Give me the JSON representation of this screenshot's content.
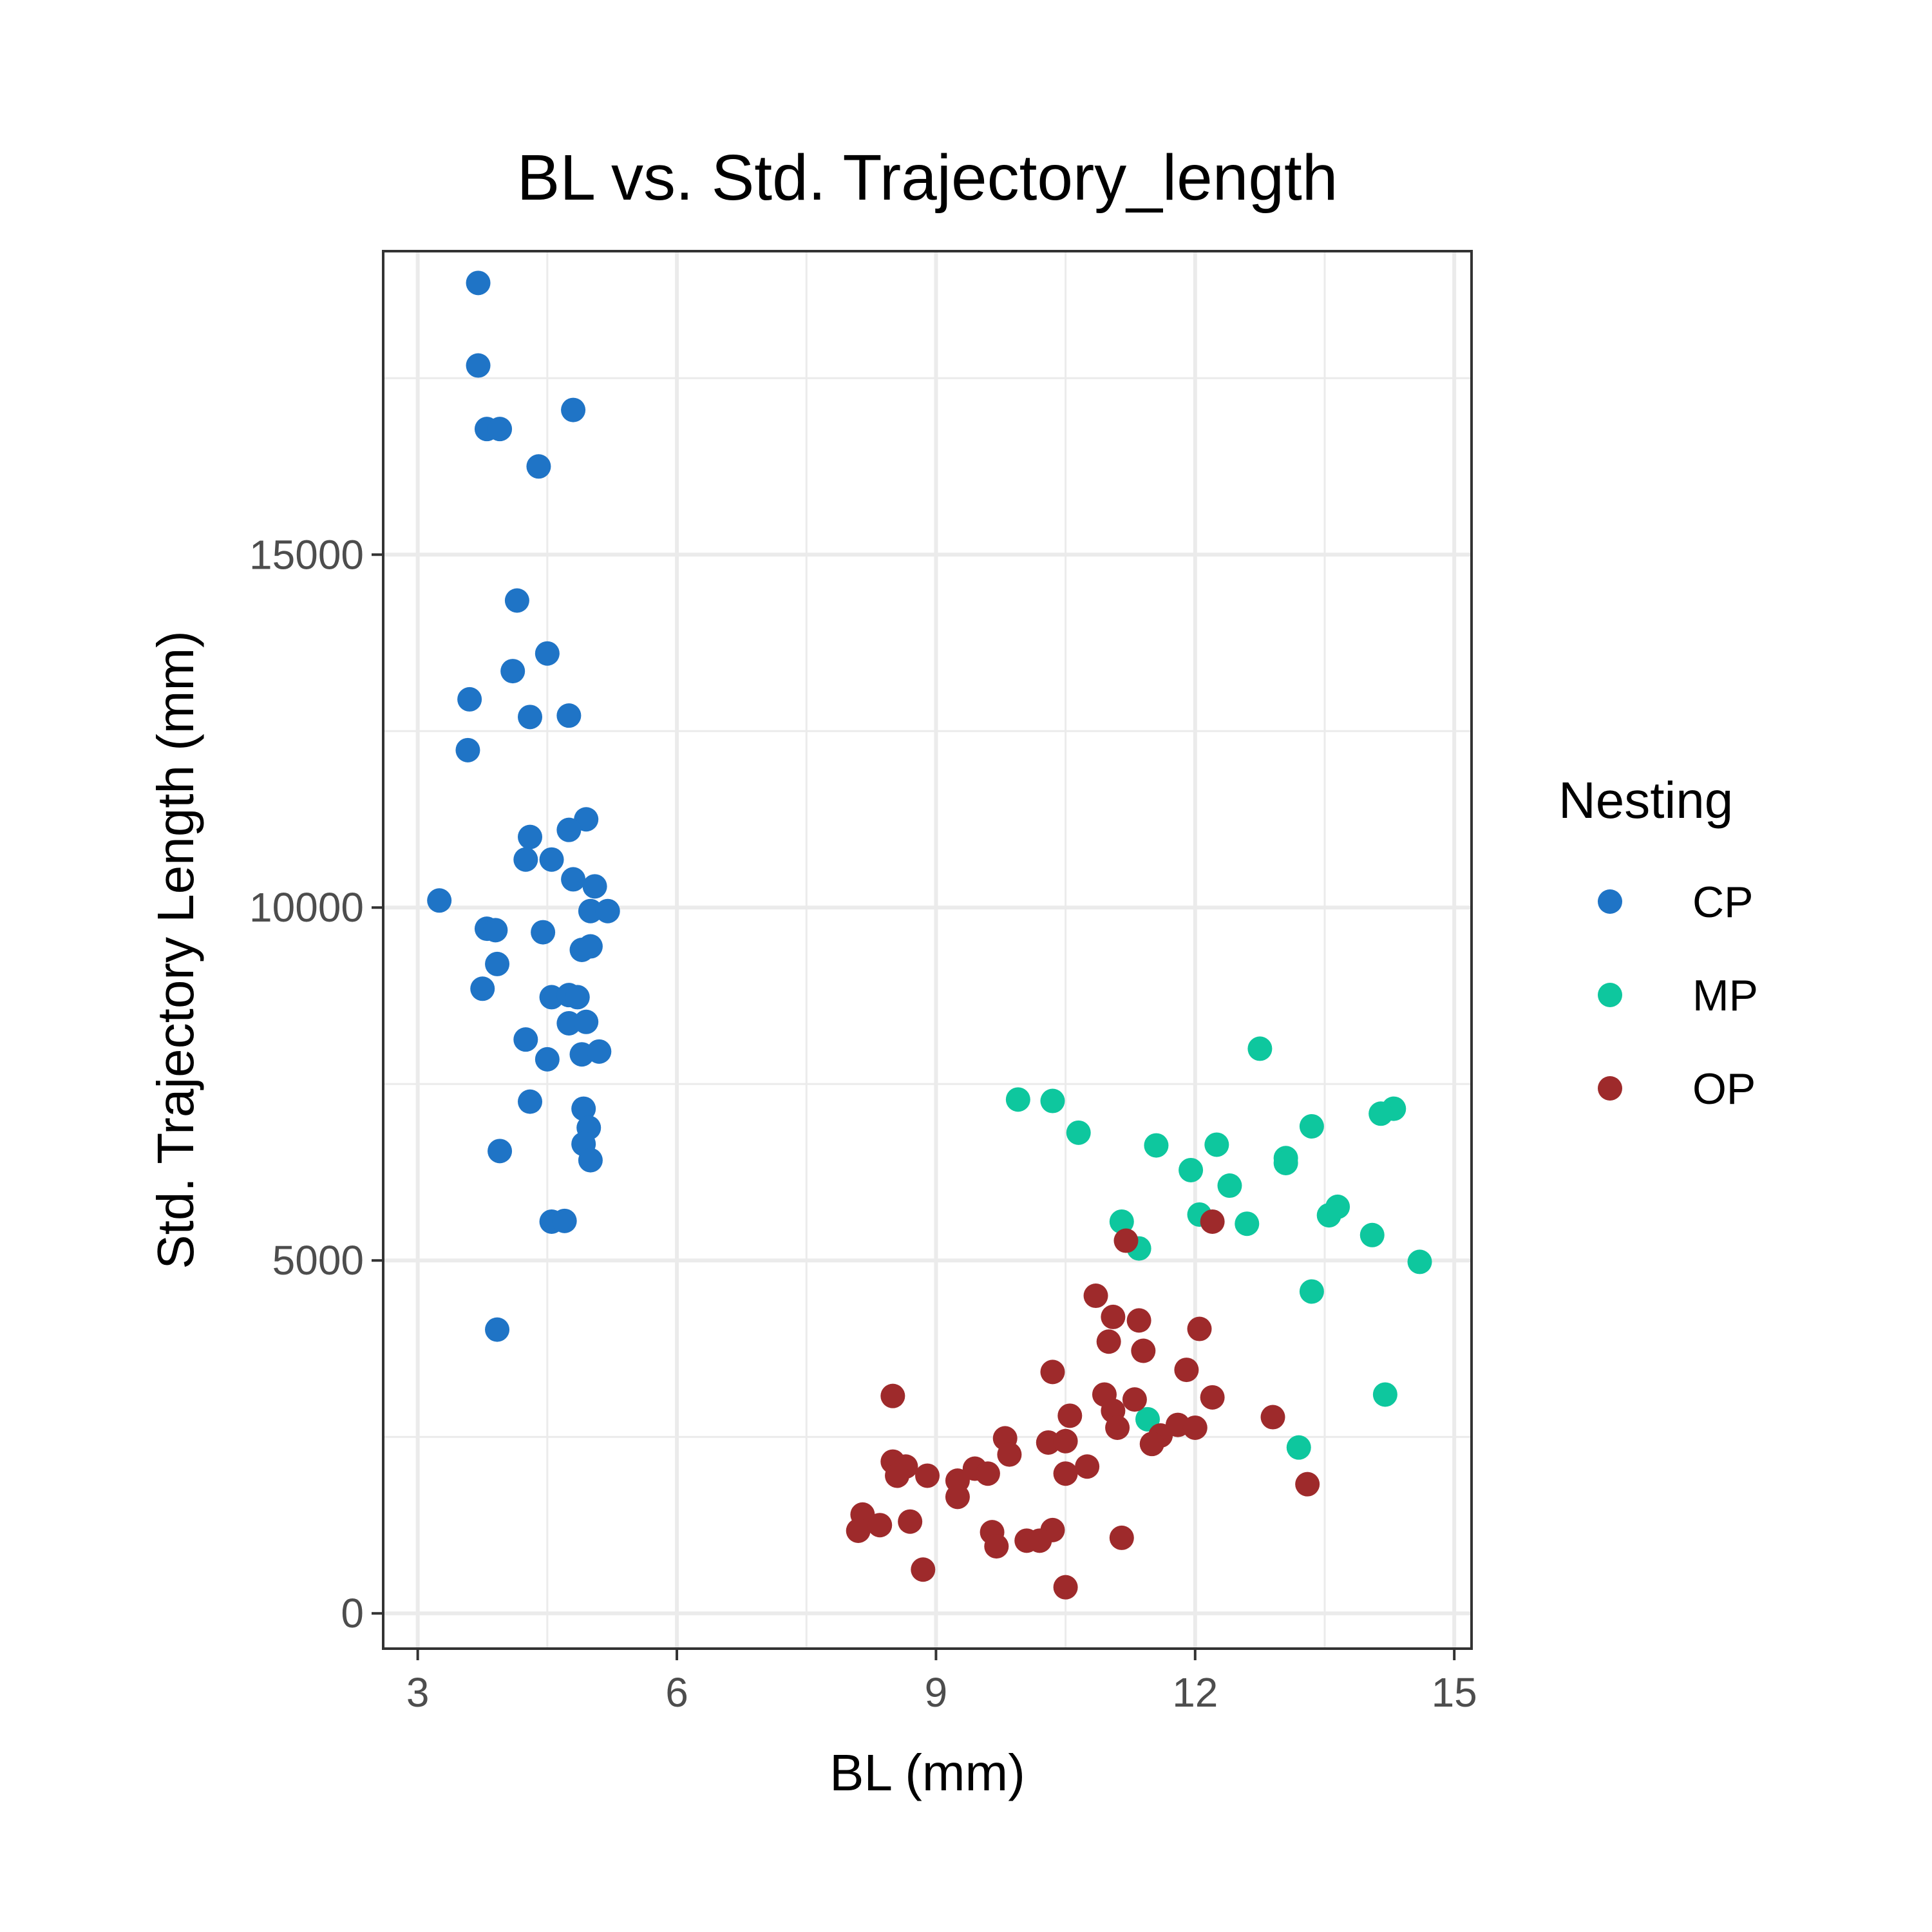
{
  "chart_data": {
    "type": "scatter",
    "title": "BL vs. Std. Trajectory_length",
    "xlabel": "BL (mm)",
    "ylabel": "Std. Trajectory Length (mm)",
    "xlim": [
      2.6,
      15.2
    ],
    "ylim": [
      -500,
      19300
    ],
    "x_ticks": [
      3,
      6,
      9,
      12,
      15
    ],
    "y_ticks": [
      0,
      5000,
      10000,
      15000
    ],
    "grid": true,
    "legend": {
      "title": "Nesting",
      "position": "right"
    },
    "series": [
      {
        "name": "CP",
        "color": "#1f74c6",
        "points": [
          [
            3.7,
            18850
          ],
          [
            3.7,
            17680
          ],
          [
            3.8,
            16780
          ],
          [
            3.95,
            16780
          ],
          [
            4.8,
            17050
          ],
          [
            4.4,
            16250
          ],
          [
            4.15,
            14350
          ],
          [
            4.5,
            13600
          ],
          [
            4.1,
            13350
          ],
          [
            3.6,
            12950
          ],
          [
            4.3,
            12700
          ],
          [
            4.75,
            12720
          ],
          [
            3.58,
            12230
          ],
          [
            4.95,
            11250
          ],
          [
            4.75,
            11100
          ],
          [
            4.3,
            11000
          ],
          [
            4.25,
            10680
          ],
          [
            4.55,
            10680
          ],
          [
            4.8,
            10400
          ],
          [
            5.05,
            10300
          ],
          [
            3.25,
            10100
          ],
          [
            5.0,
            9950
          ],
          [
            5.2,
            9950
          ],
          [
            3.8,
            9700
          ],
          [
            3.9,
            9680
          ],
          [
            4.45,
            9650
          ],
          [
            4.9,
            9400
          ],
          [
            5.0,
            9450
          ],
          [
            3.92,
            9200
          ],
          [
            3.75,
            8850
          ],
          [
            4.55,
            8730
          ],
          [
            4.75,
            8760
          ],
          [
            4.85,
            8730
          ],
          [
            4.75,
            8360
          ],
          [
            4.95,
            8380
          ],
          [
            4.25,
            8130
          ],
          [
            4.9,
            7920
          ],
          [
            5.1,
            7960
          ],
          [
            4.5,
            7850
          ],
          [
            4.3,
            7250
          ],
          [
            4.92,
            7150
          ],
          [
            4.98,
            6880
          ],
          [
            4.92,
            6650
          ],
          [
            3.95,
            6550
          ],
          [
            5.0,
            6420
          ],
          [
            4.55,
            5550
          ],
          [
            4.7,
            5560
          ],
          [
            3.92,
            4020
          ]
        ]
      },
      {
        "name": "MP",
        "color": "#0ec79e",
        "points": [
          [
            12.75,
            8000
          ],
          [
            9.95,
            7280
          ],
          [
            10.35,
            7260
          ],
          [
            14.3,
            7150
          ],
          [
            14.15,
            7080
          ],
          [
            13.35,
            6900
          ],
          [
            10.65,
            6810
          ],
          [
            11.55,
            6630
          ],
          [
            12.25,
            6640
          ],
          [
            13.05,
            6450
          ],
          [
            13.05,
            6380
          ],
          [
            11.95,
            6280
          ],
          [
            12.4,
            6060
          ],
          [
            13.65,
            5760
          ],
          [
            13.55,
            5640
          ],
          [
            12.05,
            5650
          ],
          [
            11.15,
            5550
          ],
          [
            12.6,
            5520
          ],
          [
            14.05,
            5360
          ],
          [
            11.35,
            5170
          ],
          [
            14.6,
            4980
          ],
          [
            13.35,
            4560
          ],
          [
            14.2,
            3100
          ],
          [
            11.45,
            2750
          ],
          [
            13.2,
            2350
          ]
        ]
      },
      {
        "name": "OP",
        "color": "#9e2a2b",
        "points": [
          [
            12.2,
            5550
          ],
          [
            11.2,
            5280
          ],
          [
            10.85,
            4500
          ],
          [
            11.05,
            4200
          ],
          [
            11.35,
            4150
          ],
          [
            12.05,
            4030
          ],
          [
            11.0,
            3850
          ],
          [
            11.4,
            3720
          ],
          [
            10.35,
            3420
          ],
          [
            11.9,
            3450
          ],
          [
            8.5,
            3080
          ],
          [
            10.95,
            3100
          ],
          [
            11.3,
            3030
          ],
          [
            12.2,
            3060
          ],
          [
            11.05,
            2870
          ],
          [
            10.55,
            2800
          ],
          [
            12.9,
            2780
          ],
          [
            11.1,
            2630
          ],
          [
            11.8,
            2670
          ],
          [
            12.0,
            2630
          ],
          [
            11.6,
            2520
          ],
          [
            11.5,
            2400
          ],
          [
            9.8,
            2480
          ],
          [
            10.3,
            2420
          ],
          [
            10.5,
            2440
          ],
          [
            9.85,
            2250
          ],
          [
            8.5,
            2150
          ],
          [
            8.65,
            2080
          ],
          [
            10.75,
            2080
          ],
          [
            9.45,
            2050
          ],
          [
            8.55,
            1950
          ],
          [
            8.9,
            1950
          ],
          [
            9.6,
            1980
          ],
          [
            10.5,
            1980
          ],
          [
            9.25,
            1880
          ],
          [
            9.25,
            1650
          ],
          [
            13.3,
            1830
          ],
          [
            8.15,
            1400
          ],
          [
            8.1,
            1170
          ],
          [
            8.35,
            1250
          ],
          [
            8.7,
            1300
          ],
          [
            9.65,
            1150
          ],
          [
            9.7,
            950
          ],
          [
            10.35,
            1180
          ],
          [
            10.05,
            1030
          ],
          [
            10.2,
            1030
          ],
          [
            11.15,
            1070
          ],
          [
            8.85,
            620
          ],
          [
            10.5,
            370
          ]
        ]
      }
    ]
  }
}
